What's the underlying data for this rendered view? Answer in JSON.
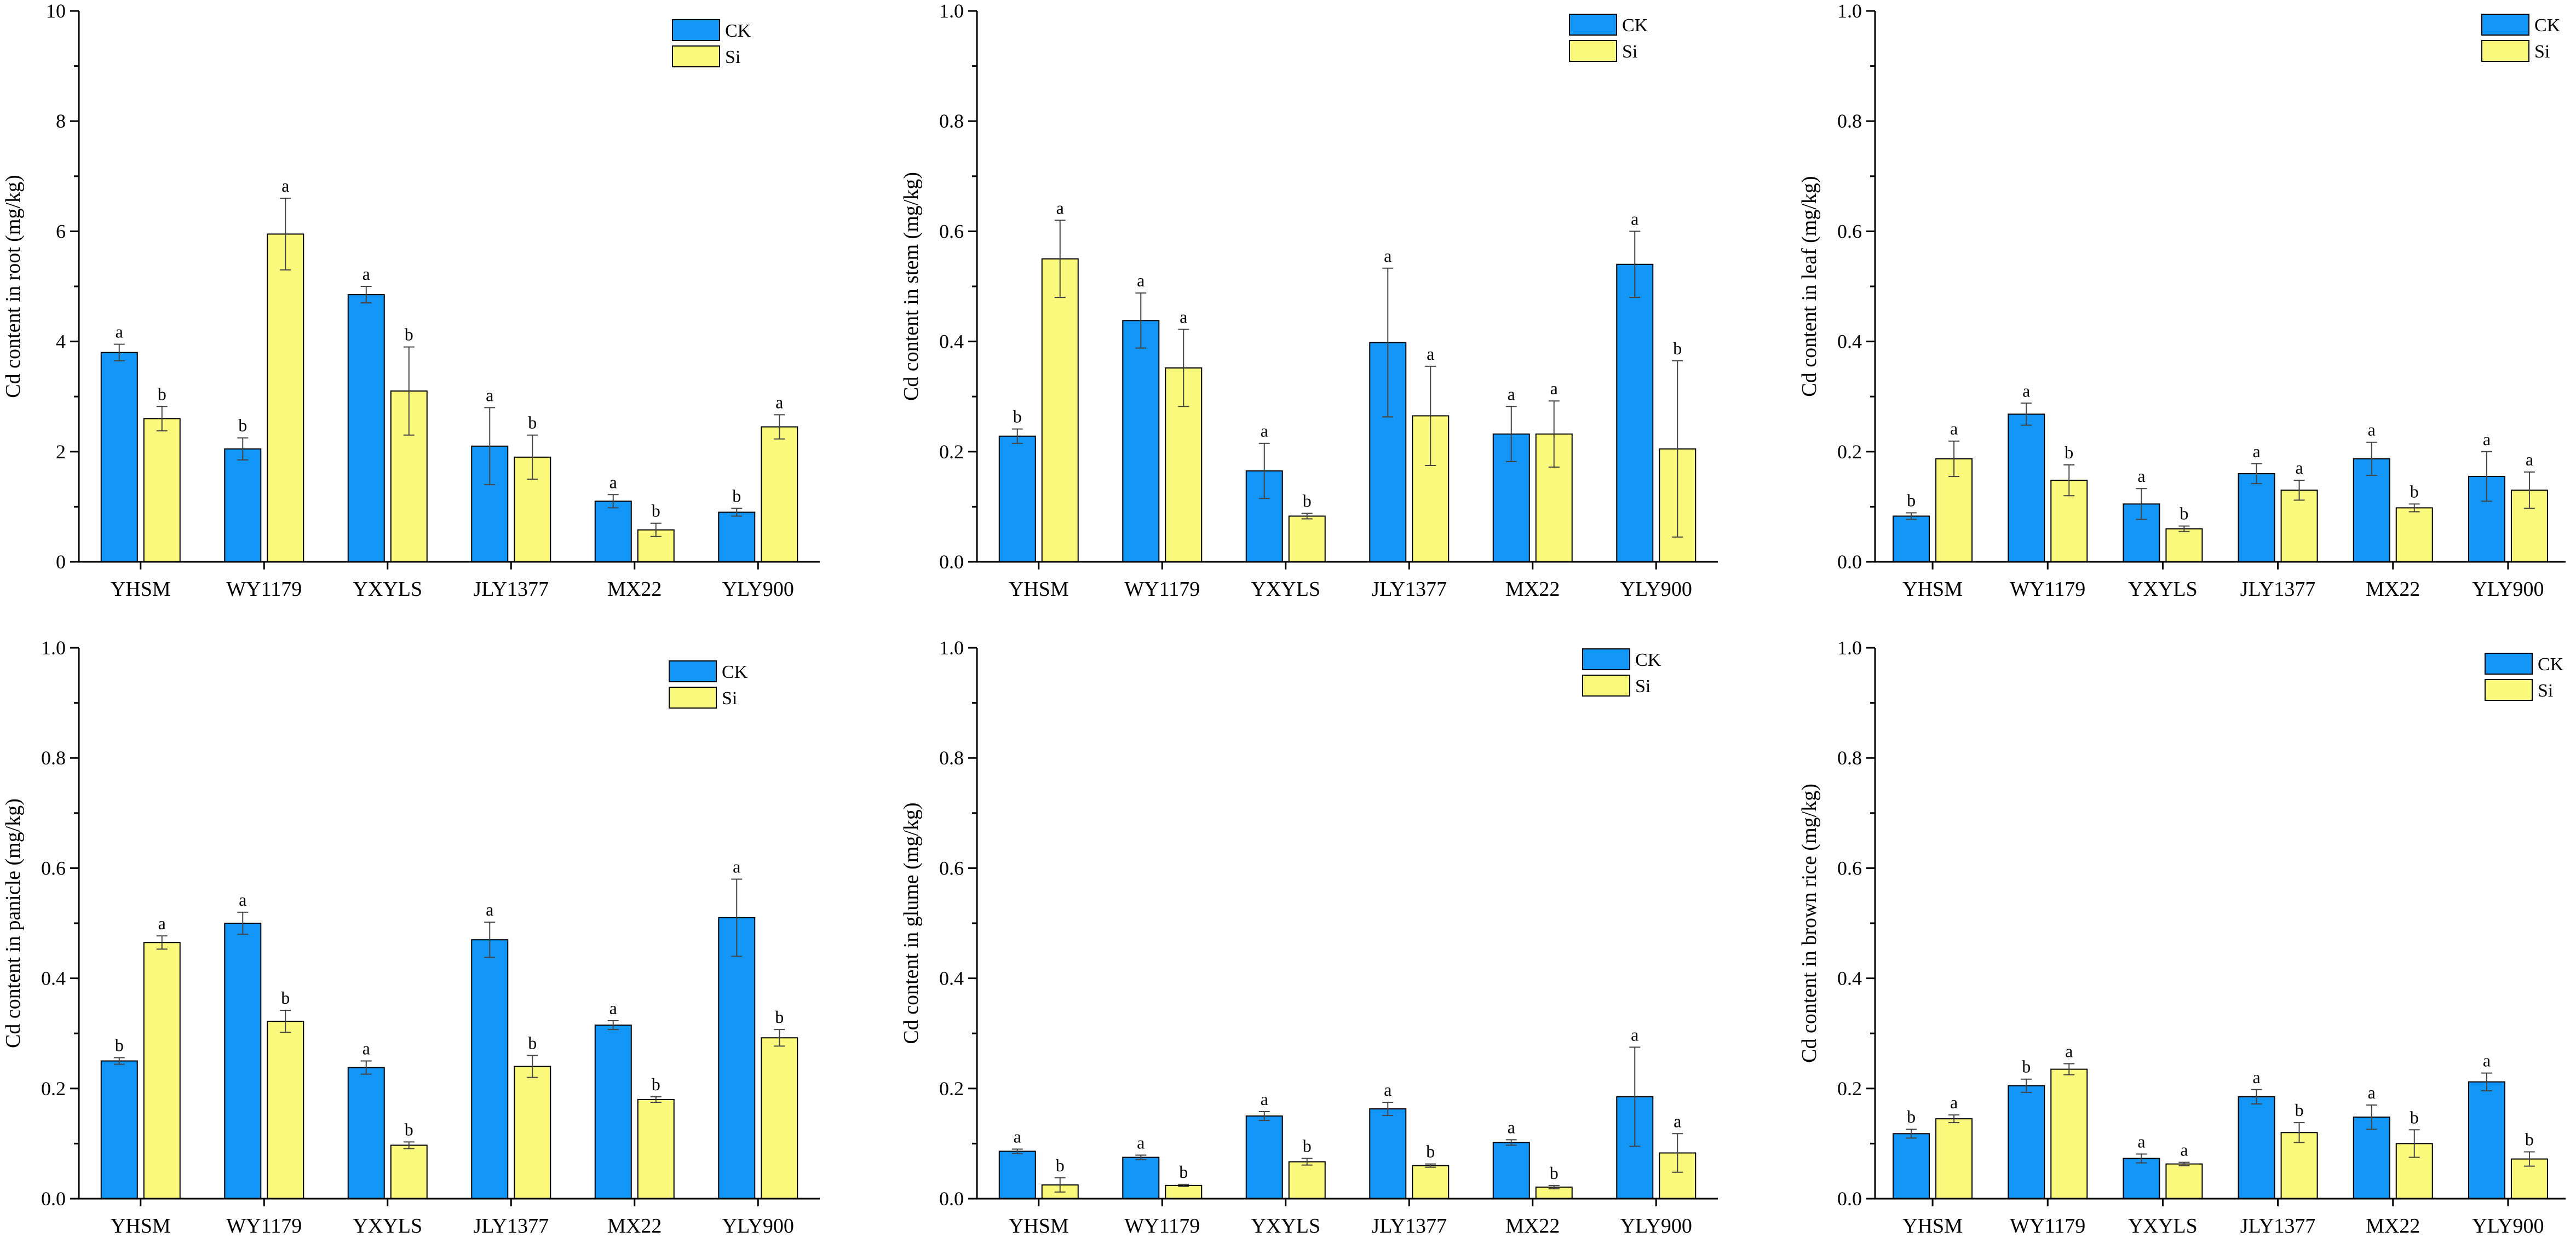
{
  "colors": {
    "ck": "#1296F7",
    "si": "#FAF97B",
    "axis": "#000000",
    "errorbar": "#444444"
  },
  "legend_labels": [
    "CK",
    "Si"
  ],
  "chart_data": [
    {
      "type": "bar",
      "ylabel": "Cd content in root (mg/kg)",
      "ylim": [
        0,
        10
      ],
      "yticks": [
        "0",
        "2",
        "4",
        "6",
        "8",
        "10"
      ],
      "categories": [
        "YHSM",
        "WY1179",
        "YXYLS",
        "JLY1377",
        "MX22",
        "YLY900"
      ],
      "series": [
        {
          "name": "CK",
          "values": [
            3.8,
            2.05,
            4.85,
            2.1,
            1.1,
            0.9
          ],
          "errors": [
            0.15,
            0.2,
            0.15,
            0.7,
            0.12,
            0.07
          ],
          "letters": [
            "a",
            "b",
            "a",
            "a",
            "a",
            "b"
          ]
        },
        {
          "name": "Si",
          "values": [
            2.6,
            5.95,
            3.1,
            1.9,
            0.58,
            2.45
          ],
          "errors": [
            0.22,
            0.65,
            0.8,
            0.4,
            0.12,
            0.22
          ],
          "letters": [
            "b",
            "a",
            "b",
            "b",
            "b",
            "a"
          ]
        }
      ]
    },
    {
      "type": "bar",
      "ylabel": "Cd content in stem (mg/kg)",
      "ylim": [
        0,
        1.0
      ],
      "yticks": [
        "0.0",
        "0.2",
        "0.4",
        "0.6",
        "0.8",
        "1.0"
      ],
      "categories": [
        "YHSM",
        "WY1179",
        "YXYLS",
        "JLY1377",
        "MX22",
        "YLY900"
      ],
      "series": [
        {
          "name": "CK",
          "values": [
            0.228,
            0.438,
            0.165,
            0.398,
            0.232,
            0.54
          ],
          "errors": [
            0.013,
            0.05,
            0.05,
            0.135,
            0.05,
            0.06
          ],
          "letters": [
            "b",
            "a",
            "a",
            "a",
            "a",
            "a"
          ]
        },
        {
          "name": "Si",
          "values": [
            0.55,
            0.352,
            0.083,
            0.265,
            0.232,
            0.205
          ],
          "errors": [
            0.07,
            0.07,
            0.005,
            0.09,
            0.06,
            0.16
          ],
          "letters": [
            "a",
            "a",
            "b",
            "a",
            "a",
            "b"
          ]
        }
      ]
    },
    {
      "type": "bar",
      "ylabel": "Cd content in leaf (mg/kg)",
      "ylim": [
        0,
        1.0
      ],
      "yticks": [
        "0.0",
        "0.2",
        "0.4",
        "0.6",
        "0.8",
        "1.0"
      ],
      "categories": [
        "YHSM",
        "WY1179",
        "YXYLS",
        "JLY1377",
        "MX22",
        "YLY900"
      ],
      "series": [
        {
          "name": "CK",
          "values": [
            0.083,
            0.268,
            0.105,
            0.16,
            0.187,
            0.155
          ],
          "errors": [
            0.006,
            0.02,
            0.028,
            0.018,
            0.03,
            0.045
          ],
          "letters": [
            "b",
            "a",
            "a",
            "a",
            "a",
            "a"
          ]
        },
        {
          "name": "Si",
          "values": [
            0.187,
            0.148,
            0.06,
            0.13,
            0.098,
            0.13
          ],
          "errors": [
            0.032,
            0.028,
            0.005,
            0.018,
            0.007,
            0.033
          ],
          "letters": [
            "a",
            "b",
            "b",
            "a",
            "b",
            "a"
          ]
        }
      ]
    },
    {
      "type": "bar",
      "ylabel": "Cd content in panicle (mg/kg)",
      "ylim": [
        0,
        1.0
      ],
      "yticks": [
        "0.0",
        "0.2",
        "0.4",
        "0.6",
        "0.8",
        "1.0"
      ],
      "categories": [
        "YHSM",
        "WY1179",
        "YXYLS",
        "JLY1377",
        "MX22",
        "YLY900"
      ],
      "series": [
        {
          "name": "CK",
          "values": [
            0.25,
            0.5,
            0.238,
            0.47,
            0.315,
            0.51
          ],
          "errors": [
            0.006,
            0.02,
            0.012,
            0.032,
            0.008,
            0.07
          ],
          "letters": [
            "b",
            "a",
            "a",
            "a",
            "a",
            "a"
          ]
        },
        {
          "name": "Si",
          "values": [
            0.465,
            0.322,
            0.097,
            0.24,
            0.18,
            0.292
          ],
          "errors": [
            0.012,
            0.02,
            0.006,
            0.02,
            0.005,
            0.015
          ],
          "letters": [
            "a",
            "b",
            "b",
            "b",
            "b",
            "b"
          ]
        }
      ]
    },
    {
      "type": "bar",
      "ylabel": "Cd content in glume (mg/kg)",
      "ylim": [
        0,
        1.0
      ],
      "yticks": [
        "0.0",
        "0.2",
        "0.4",
        "0.6",
        "0.8",
        "1.0"
      ],
      "categories": [
        "YHSM",
        "WY1179",
        "YXYLS",
        "JLY1377",
        "MX22",
        "YLY900"
      ],
      "series": [
        {
          "name": "CK",
          "values": [
            0.086,
            0.075,
            0.15,
            0.163,
            0.102,
            0.185
          ],
          "errors": [
            0.004,
            0.004,
            0.008,
            0.012,
            0.005,
            0.09
          ],
          "letters": [
            "a",
            "a",
            "a",
            "a",
            "a",
            "a"
          ]
        },
        {
          "name": "Si",
          "values": [
            0.025,
            0.024,
            0.067,
            0.06,
            0.021,
            0.083
          ],
          "errors": [
            0.013,
            0.002,
            0.006,
            0.003,
            0.003,
            0.035
          ],
          "letters": [
            "b",
            "b",
            "b",
            "b",
            "b",
            "a"
          ]
        }
      ]
    },
    {
      "type": "bar",
      "ylabel": "Cd content in brown rice (mg/kg)",
      "ylim": [
        0,
        1.0
      ],
      "yticks": [
        "0.0",
        "0.2",
        "0.4",
        "0.6",
        "0.8",
        "1.0"
      ],
      "categories": [
        "YHSM",
        "WY1179",
        "YXYLS",
        "JLY1377",
        "MX22",
        "YLY900"
      ],
      "series": [
        {
          "name": "CK",
          "values": [
            0.118,
            0.205,
            0.073,
            0.185,
            0.148,
            0.212
          ],
          "errors": [
            0.008,
            0.012,
            0.008,
            0.013,
            0.022,
            0.016
          ],
          "letters": [
            "b",
            "b",
            "a",
            "a",
            "a",
            "a"
          ]
        },
        {
          "name": "Si",
          "values": [
            0.145,
            0.235,
            0.063,
            0.12,
            0.1,
            0.072
          ],
          "errors": [
            0.007,
            0.01,
            0.003,
            0.018,
            0.025,
            0.013
          ],
          "letters": [
            "a",
            "a",
            "a",
            "b",
            "b",
            "b"
          ]
        }
      ]
    }
  ]
}
